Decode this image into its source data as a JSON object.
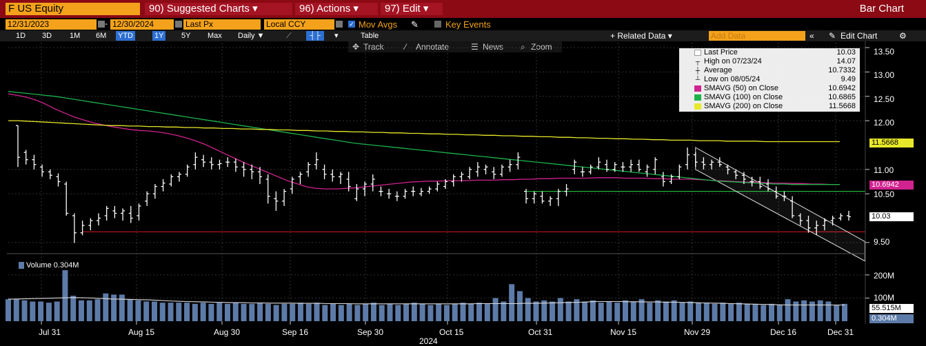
{
  "header": {
    "ticker": "F US Equity",
    "menus": [
      "90) Suggested Charts ▾",
      "96) Actions ▾",
      "97) Edit ▾"
    ],
    "chart_kind": "Bar Chart"
  },
  "controls": {
    "start_date": "12/31/2023",
    "end_date": "12/30/2024",
    "field": "Last Px",
    "currency": "Local CCY",
    "mov_avgs": "Mov Avgs",
    "key_events": "Key Events",
    "periods": [
      "1D",
      "3D",
      "1M",
      "6M",
      "YTD",
      "1Y",
      "5Y",
      "Max"
    ],
    "selected_periods": [
      "YTD",
      "1Y"
    ],
    "frequency": "Daily ▼",
    "table": "Table",
    "related_data": "+ Related Data ▾",
    "add_data_placeholder": "Add Data",
    "edit_chart": "Edit Chart"
  },
  "toolbar": {
    "track": "Track",
    "annotate": "Annotate",
    "news": "News",
    "zoom": "Zoom"
  },
  "legend": {
    "rows": [
      {
        "name": "Last Price",
        "value": "10.03",
        "color": "#ffffff"
      },
      {
        "name": "High on 07/23/24",
        "value": "14.07"
      },
      {
        "name": "Average",
        "value": "10.7332"
      },
      {
        "name": "Low on 08/05/24",
        "value": "9.49"
      },
      {
        "name": "SMAVG (50)  on Close",
        "value": "10.6942",
        "color": "#d0238f"
      },
      {
        "name": "SMAVG (100)  on Close",
        "value": "10.6865",
        "color": "#1db34a"
      },
      {
        "name": "SMAVG (200)  on Close",
        "value": "11.5668",
        "color": "#e8e82a"
      }
    ]
  },
  "price_tags": {
    "sma200": "11.5668",
    "sma50": "10.6942",
    "last": "10.03"
  },
  "volume_tags": {
    "avg": "55.515M",
    "last": "0.304M"
  },
  "chart_data": {
    "type": "bar",
    "price_axis": {
      "ticks": [
        "13.50",
        "13.00",
        "12.50",
        "12.00",
        "11.00",
        "10.50",
        "9.50"
      ],
      "ylim": [
        9.3,
        13.6
      ]
    },
    "volume_axis": {
      "ticks": [
        "200M",
        "100M"
      ],
      "ylim": [
        0,
        280
      ]
    },
    "x_ticks": [
      "Jul 31",
      "Aug 15",
      "Aug 30",
      "Sep 16",
      "Sep 30",
      "Oct 15",
      "Oct 31",
      "Nov 15",
      "Nov 29",
      "Dec 16",
      "Dec 31"
    ],
    "x_year": "2024",
    "volume_label": "Volume 0.304M",
    "ohlc": [
      [
        11.9,
        11.9,
        11.05,
        11.25
      ],
      [
        11.35,
        11.4,
        11.1,
        11.2
      ],
      [
        11.2,
        11.3,
        11.0,
        11.1
      ],
      [
        11.05,
        11.1,
        10.85,
        10.95
      ],
      [
        10.95,
        11.0,
        10.8,
        10.88
      ],
      [
        10.85,
        10.92,
        10.65,
        10.75
      ],
      [
        10.7,
        10.75,
        10.05,
        10.1
      ],
      [
        10.05,
        10.1,
        9.49,
        9.7
      ],
      [
        9.7,
        9.95,
        9.65,
        9.85
      ],
      [
        9.85,
        10.0,
        9.75,
        9.95
      ],
      [
        9.95,
        10.1,
        9.85,
        10.0
      ],
      [
        10.05,
        10.25,
        9.95,
        10.2
      ],
      [
        10.15,
        10.25,
        10.0,
        10.1
      ],
      [
        10.1,
        10.2,
        9.95,
        10.15
      ],
      [
        10.1,
        10.25,
        9.9,
        10.0
      ],
      [
        10.05,
        10.3,
        9.95,
        10.25
      ],
      [
        10.35,
        10.55,
        10.25,
        10.5
      ],
      [
        10.5,
        10.7,
        10.4,
        10.65
      ],
      [
        10.65,
        10.8,
        10.55,
        10.72
      ],
      [
        10.7,
        10.9,
        10.65,
        10.85
      ],
      [
        10.85,
        10.95,
        10.75,
        10.9
      ],
      [
        10.9,
        11.1,
        10.85,
        11.05
      ],
      [
        11.1,
        11.35,
        11.0,
        11.25
      ],
      [
        11.2,
        11.3,
        11.05,
        11.15
      ],
      [
        11.15,
        11.25,
        11.0,
        11.1
      ],
      [
        11.1,
        11.2,
        11.0,
        11.12
      ],
      [
        11.15,
        11.25,
        11.05,
        11.15
      ],
      [
        11.15,
        11.22,
        10.95,
        11.05
      ],
      [
        11.05,
        11.15,
        10.85,
        11.0
      ],
      [
        11.0,
        11.1,
        10.8,
        10.95
      ],
      [
        10.95,
        11.05,
        10.7,
        10.85
      ],
      [
        10.8,
        10.9,
        10.3,
        10.45
      ],
      [
        10.4,
        10.55,
        10.15,
        10.35
      ],
      [
        10.35,
        10.6,
        10.25,
        10.55
      ],
      [
        10.6,
        10.85,
        10.5,
        10.8
      ],
      [
        10.85,
        10.95,
        10.7,
        10.9
      ],
      [
        10.95,
        11.15,
        10.85,
        11.1
      ],
      [
        11.1,
        11.35,
        11.0,
        11.2
      ],
      [
        11.0,
        11.1,
        10.8,
        10.9
      ],
      [
        10.9,
        11.0,
        10.75,
        10.85
      ],
      [
        10.85,
        10.95,
        10.7,
        10.9
      ],
      [
        10.8,
        10.95,
        10.55,
        10.65
      ],
      [
        10.4,
        10.7,
        10.35,
        10.6
      ],
      [
        10.6,
        10.75,
        10.45,
        10.7
      ],
      [
        10.7,
        10.9,
        10.55,
        10.8
      ],
      [
        10.55,
        10.65,
        10.45,
        10.55
      ],
      [
        10.5,
        10.6,
        10.4,
        10.5
      ],
      [
        10.45,
        10.55,
        10.35,
        10.45
      ],
      [
        10.45,
        10.6,
        10.4,
        10.55
      ],
      [
        10.55,
        10.65,
        10.45,
        10.55
      ],
      [
        10.5,
        10.62,
        10.45,
        10.55
      ],
      [
        10.55,
        10.65,
        10.5,
        10.6
      ],
      [
        10.6,
        10.75,
        10.55,
        10.7
      ],
      [
        10.65,
        10.8,
        10.6,
        10.75
      ],
      [
        10.75,
        10.9,
        10.65,
        10.85
      ],
      [
        10.85,
        10.95,
        10.75,
        10.9
      ],
      [
        10.85,
        11.05,
        10.8,
        11.0
      ],
      [
        10.95,
        11.15,
        10.85,
        11.05
      ],
      [
        11.0,
        11.1,
        10.9,
        11.05
      ],
      [
        10.95,
        11.05,
        10.8,
        10.9
      ],
      [
        10.9,
        11.1,
        10.85,
        11.05
      ],
      [
        11.05,
        11.2,
        10.95,
        11.1
      ],
      [
        11.1,
        11.35,
        11.0,
        11.25
      ],
      [
        10.55,
        10.6,
        10.3,
        10.4
      ],
      [
        10.4,
        10.55,
        10.3,
        10.5
      ],
      [
        10.45,
        10.55,
        10.3,
        10.35
      ],
      [
        10.35,
        10.45,
        10.25,
        10.4
      ],
      [
        10.4,
        10.6,
        10.25,
        10.55
      ],
      [
        10.55,
        10.7,
        10.45,
        10.6
      ],
      [
        11.0,
        11.2,
        10.9,
        11.15
      ],
      [
        10.95,
        11.05,
        10.85,
        10.95
      ],
      [
        10.95,
        11.1,
        10.9,
        11.05
      ],
      [
        11.05,
        11.25,
        11.0,
        11.15
      ],
      [
        11.1,
        11.2,
        10.95,
        11.0
      ],
      [
        11.0,
        11.15,
        10.95,
        11.1
      ],
      [
        11.05,
        11.15,
        10.95,
        11.05
      ],
      [
        11.05,
        11.2,
        10.95,
        11.1
      ],
      [
        11.1,
        11.2,
        10.95,
        11.0
      ],
      [
        10.95,
        11.1,
        10.85,
        11.05
      ],
      [
        11.0,
        11.25,
        10.9,
        11.2
      ],
      [
        10.85,
        10.95,
        10.65,
        10.75
      ],
      [
        10.75,
        10.9,
        10.7,
        10.85
      ],
      [
        10.85,
        11.1,
        10.8,
        11.05
      ],
      [
        11.1,
        11.45,
        11.0,
        11.3
      ],
      [
        11.3,
        11.35,
        11.05,
        11.15
      ],
      [
        11.15,
        11.25,
        11.0,
        11.1
      ],
      [
        11.1,
        11.2,
        11.0,
        11.15
      ],
      [
        11.15,
        11.25,
        11.05,
        11.1
      ],
      [
        11.05,
        11.1,
        10.9,
        11.0
      ],
      [
        10.95,
        11.0,
        10.8,
        10.88
      ],
      [
        10.88,
        10.95,
        10.7,
        10.8
      ],
      [
        10.75,
        10.85,
        10.65,
        10.75
      ],
      [
        10.75,
        10.85,
        10.6,
        10.65
      ],
      [
        10.7,
        10.8,
        10.55,
        10.6
      ],
      [
        10.55,
        10.65,
        10.4,
        10.45
      ],
      [
        10.45,
        10.55,
        10.35,
        10.45
      ],
      [
        10.35,
        10.45,
        10.0,
        10.05
      ],
      [
        10.05,
        10.1,
        9.85,
        9.95
      ],
      [
        9.95,
        10.05,
        9.7,
        9.8
      ],
      [
        9.8,
        9.95,
        9.65,
        9.85
      ],
      [
        9.85,
        10.0,
        9.75,
        9.95
      ],
      [
        9.95,
        10.05,
        9.85,
        10.0
      ],
      [
        10.0,
        10.1,
        9.95,
        10.05
      ],
      [
        10.05,
        10.15,
        9.95,
        10.03
      ]
    ],
    "volume": [
      95,
      95,
      90,
      85,
      85,
      80,
      85,
      260,
      110,
      90,
      90,
      95,
      120,
      115,
      115,
      95,
      90,
      85,
      85,
      80,
      80,
      80,
      80,
      75,
      80,
      75,
      80,
      75,
      80,
      75,
      75,
      80,
      75,
      70,
      75,
      75,
      80,
      75,
      80,
      70,
      75,
      70,
      75,
      70,
      75,
      80,
      70,
      75,
      70,
      75,
      80,
      75,
      70,
      75,
      70,
      75,
      80,
      75,
      80,
      75,
      100,
      85,
      160,
      130,
      100,
      85,
      90,
      85,
      100,
      85,
      95,
      85,
      90,
      80,
      85,
      80,
      90,
      85,
      95,
      80,
      90,
      85,
      90,
      80,
      85,
      80,
      80,
      75,
      80,
      75,
      80,
      75,
      75,
      70,
      75,
      70,
      95,
      85,
      90,
      85,
      90,
      85,
      70,
      75
    ],
    "series": [
      {
        "name": "SMAVG (50)  on Close",
        "color": "#d0238f",
        "values": [
          12.55,
          12.52,
          12.48,
          12.42,
          12.34,
          12.24,
          12.16,
          12.08,
          12.02,
          11.96,
          11.92,
          11.88,
          11.85,
          11.82,
          11.8,
          11.79,
          11.77,
          11.74,
          11.7,
          11.65,
          11.59,
          11.52,
          11.43,
          11.34,
          11.25,
          11.16,
          11.08,
          11.0,
          10.92,
          10.84,
          10.76,
          10.7,
          10.64,
          10.61,
          10.6,
          10.6,
          10.61,
          10.62,
          10.64,
          10.66,
          10.68,
          10.7,
          10.72,
          10.74,
          10.75,
          10.76,
          10.76,
          10.77,
          10.77,
          10.77,
          10.78,
          10.78,
          10.78,
          10.79,
          10.79,
          10.8,
          10.8,
          10.81,
          10.81,
          10.82,
          10.82,
          10.82,
          10.82,
          10.83,
          10.83,
          10.83,
          10.82,
          10.82,
          10.82,
          10.81,
          10.81,
          10.8,
          10.8,
          10.8,
          10.79,
          10.78,
          10.77,
          10.76,
          10.75,
          10.74,
          10.74,
          10.73,
          10.72,
          10.72,
          10.71,
          10.71,
          10.7,
          10.7,
          10.69,
          10.69
        ]
      },
      {
        "name": "SMAVG (100)  on Close",
        "color": "#1db34a",
        "values": [
          12.6,
          12.58,
          12.56,
          12.54,
          12.52,
          12.5,
          12.47,
          12.44,
          12.41,
          12.38,
          12.35,
          12.32,
          12.29,
          12.26,
          12.23,
          12.2,
          12.17,
          12.14,
          12.11,
          12.08,
          12.05,
          12.02,
          11.99,
          11.96,
          11.93,
          11.9,
          11.87,
          11.84,
          11.81,
          11.78,
          11.75,
          11.72,
          11.69,
          11.66,
          11.63,
          11.6,
          11.57,
          11.54,
          11.52,
          11.5,
          11.48,
          11.46,
          11.44,
          11.42,
          11.4,
          11.38,
          11.36,
          11.34,
          11.32,
          11.3,
          11.28,
          11.26,
          11.24,
          11.22,
          11.2,
          11.18,
          11.16,
          11.14,
          11.12,
          11.1,
          11.08,
          11.06,
          11.04,
          11.02,
          11.0,
          10.98,
          10.96,
          10.94,
          10.92,
          10.9,
          10.88,
          10.86,
          10.84,
          10.82,
          10.8,
          10.78,
          10.76,
          10.75,
          10.74,
          10.73,
          10.72,
          10.71,
          10.7,
          10.7,
          10.69,
          10.69,
          10.69,
          10.69,
          10.69,
          10.69
        ]
      },
      {
        "name": "SMAVG (200)  on Close",
        "color": "#e8e82a",
        "values": [
          12.0,
          12.0,
          11.99,
          11.98,
          11.97,
          11.96,
          11.95,
          11.94,
          11.93,
          11.92,
          11.91,
          11.9,
          11.9,
          11.89,
          11.89,
          11.88,
          11.88,
          11.87,
          11.87,
          11.86,
          11.86,
          11.85,
          11.85,
          11.84,
          11.84,
          11.83,
          11.83,
          11.82,
          11.82,
          11.81,
          11.81,
          11.8,
          11.8,
          11.79,
          11.79,
          11.78,
          11.78,
          11.77,
          11.77,
          11.76,
          11.76,
          11.75,
          11.75,
          11.74,
          11.74,
          11.73,
          11.73,
          11.72,
          11.72,
          11.71,
          11.71,
          11.7,
          11.7,
          11.69,
          11.69,
          11.68,
          11.68,
          11.67,
          11.67,
          11.66,
          11.66,
          11.65,
          11.65,
          11.64,
          11.64,
          11.63,
          11.63,
          11.62,
          11.62,
          11.61,
          11.61,
          11.6,
          11.6,
          11.6,
          11.59,
          11.59,
          11.59,
          11.58,
          11.58,
          11.58,
          11.58,
          11.57,
          11.57,
          11.57,
          11.57,
          11.57,
          11.57,
          11.57,
          11.57,
          11.57
        ]
      }
    ],
    "volume_avg": [
      95,
      96,
      97,
      98,
      99,
      100,
      101,
      102,
      101,
      100,
      98,
      96,
      95,
      94,
      93,
      92,
      90,
      88,
      86,
      85,
      84,
      83,
      82,
      81,
      80,
      80,
      79,
      79,
      78,
      78,
      78,
      77,
      77,
      77,
      76,
      76,
      76,
      75,
      75,
      75,
      75,
      75,
      75,
      75,
      75,
      75,
      75,
      75,
      75,
      75,
      76,
      76,
      76,
      76,
      76,
      77,
      77,
      78,
      79,
      80,
      81,
      82,
      84,
      85,
      85,
      85,
      84,
      84,
      83,
      83,
      82,
      82,
      81,
      80,
      79,
      78,
      77,
      76,
      75,
      74,
      73,
      72,
      71,
      70,
      70,
      70,
      70,
      70,
      70,
      70
    ],
    "levels": [
      {
        "value": 10.55,
        "color": "#22b33b"
      },
      {
        "value": 9.72,
        "color": "#c8161c"
      }
    ],
    "channel": [
      {
        "from": [
          11.45,
          11.0
        ],
        "to": [
          9.52,
          9.4
        ],
        "note": "upper rail start price, upper rail end price"
      },
      {
        "from": [
          11.0,
          11.0
        ],
        "to": [
          9.52,
          9.08
        ],
        "note": "lower rail"
      }
    ]
  }
}
